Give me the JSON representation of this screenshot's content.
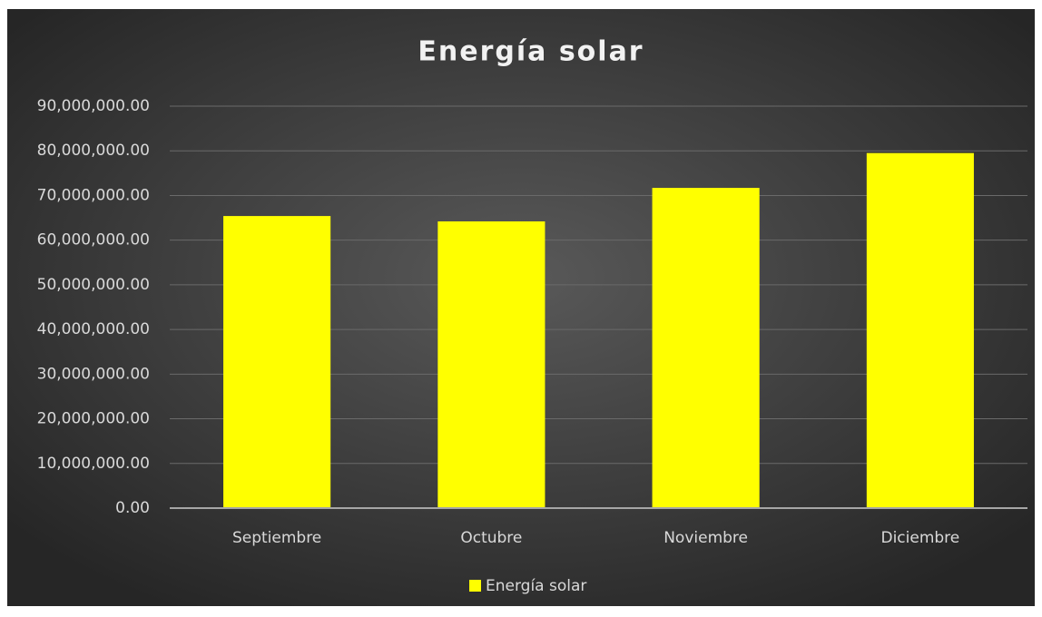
{
  "chart_data": {
    "type": "bar",
    "title": "Energía solar",
    "categories": [
      "Septiembre",
      "Octubre",
      "Noviembre",
      "Diciembre"
    ],
    "series": [
      {
        "name": "Energía solar",
        "color": "#ffff00",
        "values": [
          65400000,
          64200000,
          71700000,
          79500000
        ]
      }
    ],
    "ylim": [
      0,
      90000000
    ],
    "yticks": [
      {
        "value": 0,
        "label": "0.00"
      },
      {
        "value": 10000000,
        "label": "10,000,000.00"
      },
      {
        "value": 20000000,
        "label": "20,000,000.00"
      },
      {
        "value": 30000000,
        "label": "30,000,000.00"
      },
      {
        "value": 40000000,
        "label": "40,000,000.00"
      },
      {
        "value": 50000000,
        "label": "50,000,000.00"
      },
      {
        "value": 60000000,
        "label": "60,000,000.00"
      },
      {
        "value": 70000000,
        "label": "70,000,000.00"
      },
      {
        "value": 80000000,
        "label": "80,000,000.00"
      },
      {
        "value": 90000000,
        "label": "90,000,000.00"
      }
    ],
    "grid": true,
    "legend": "bottom"
  }
}
